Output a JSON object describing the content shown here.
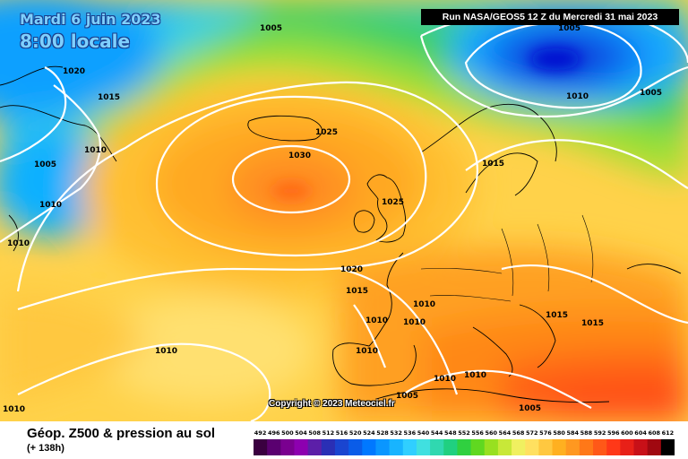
{
  "header": {
    "date": "Mardi 6 juin 2023",
    "time": "8:00 locale",
    "run": "Run NASA/GEOS5 12 Z du Mercredi 31 mai 2023"
  },
  "copyright": "Copyright © 2023 Meteociel.fr",
  "footer": {
    "title": "Géop. Z500 & pression au sol",
    "lead": "(+ 138h)"
  },
  "legend": {
    "ticks": [
      "492",
      "496",
      "500",
      "504",
      "508",
      "512",
      "516",
      "520",
      "524",
      "528",
      "532",
      "536",
      "540",
      "544",
      "548",
      "552",
      "556",
      "560",
      "564",
      "568",
      "572",
      "576",
      "580",
      "584",
      "588",
      "592",
      "596",
      "600",
      "604",
      "608",
      "612"
    ],
    "colors": [
      "#3a0040",
      "#5a0070",
      "#7a0090",
      "#8d00b0",
      "#5c1fa8",
      "#2a2fb5",
      "#1a45d0",
      "#0a5ce8",
      "#0078ff",
      "#0a96ff",
      "#18b4ff",
      "#30cfff",
      "#40e0e0",
      "#30d8b0",
      "#20d080",
      "#30d040",
      "#60d820",
      "#98e020",
      "#c8e838",
      "#f0f060",
      "#ffe060",
      "#ffc840",
      "#ffb020",
      "#ff9820",
      "#ff7818",
      "#ff5818",
      "#ff3818",
      "#e82018",
      "#c81018",
      "#a00810",
      "#000000"
    ]
  },
  "isobars": {
    "labels": [
      "1005",
      "1005",
      "1010",
      "1005",
      "1015",
      "1020",
      "1010",
      "1005",
      "1010",
      "1010",
      "1030",
      "1025",
      "1025",
      "1015",
      "1020",
      "1015",
      "1010",
      "1010",
      "1010",
      "1010",
      "1010",
      "1010",
      "1005",
      "1015",
      "1015",
      "1010",
      "1005",
      "1010"
    ]
  },
  "colors": {
    "isobar": "#ffffff",
    "coast": "#000000",
    "runbox_bg": "#000000"
  }
}
